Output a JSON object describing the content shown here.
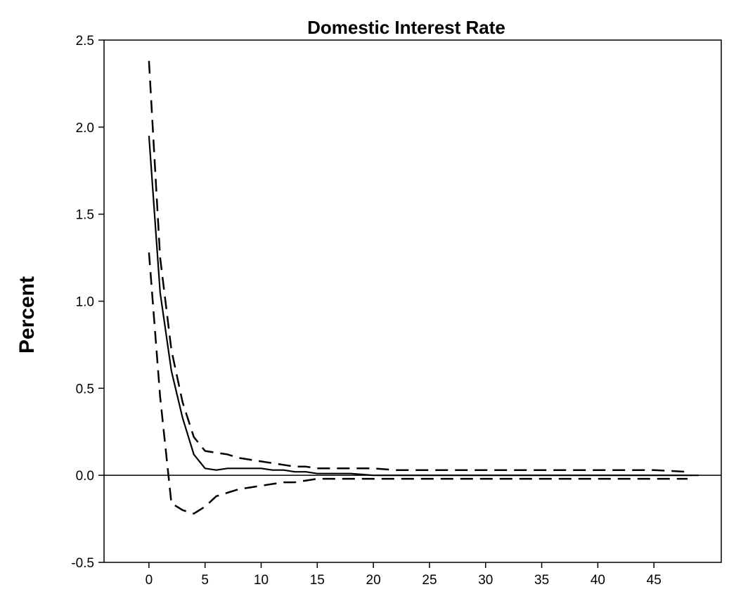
{
  "chart_data": {
    "type": "line",
    "title": "Domestic Interest Rate",
    "xlabel": "",
    "ylabel": "Percent",
    "xlim": [
      -4,
      51
    ],
    "ylim": [
      -0.5,
      2.5
    ],
    "x_ticks": [
      0,
      5,
      10,
      15,
      20,
      25,
      30,
      35,
      40,
      45
    ],
    "x_tick_labels": [
      "0",
      "5",
      "10",
      "15",
      "20",
      "25",
      "30",
      "35",
      "40",
      "45"
    ],
    "y_ticks": [
      -0.5,
      0.0,
      0.5,
      1.0,
      1.5,
      2.0,
      2.5
    ],
    "y_tick_labels": [
      "-0.5",
      "0.0",
      "0.5",
      "1.0",
      "1.5",
      "2.0",
      "2.5"
    ],
    "grid": false,
    "zero_line": true,
    "series": [
      {
        "style": "solid",
        "x": [
          0,
          1,
          2,
          3,
          4,
          5,
          6,
          7,
          8,
          9,
          10,
          11,
          12,
          13,
          14,
          15,
          16,
          18,
          20,
          22,
          25,
          30,
          35,
          40,
          45,
          49
        ],
        "y": [
          1.95,
          1.05,
          0.6,
          0.33,
          0.12,
          0.04,
          0.03,
          0.04,
          0.04,
          0.04,
          0.04,
          0.03,
          0.03,
          0.02,
          0.02,
          0.01,
          0.01,
          0.01,
          0.0,
          0.0,
          0.0,
          0.0,
          0.0,
          0.0,
          0.0,
          0.0
        ]
      },
      {
        "style": "dashed",
        "x": [
          0,
          1,
          2,
          3,
          4,
          5,
          6,
          7,
          8,
          9,
          10,
          11,
          12,
          13,
          14,
          15,
          16,
          18,
          20,
          22,
          25,
          30,
          35,
          40,
          45,
          48
        ],
        "y": [
          2.38,
          1.25,
          0.72,
          0.42,
          0.22,
          0.14,
          0.13,
          0.12,
          0.1,
          0.09,
          0.08,
          0.07,
          0.06,
          0.05,
          0.05,
          0.04,
          0.04,
          0.04,
          0.04,
          0.03,
          0.03,
          0.03,
          0.03,
          0.03,
          0.03,
          0.02
        ]
      },
      {
        "style": "dashed",
        "x": [
          0,
          1,
          2,
          3,
          4,
          5,
          6,
          7,
          8,
          9,
          10,
          11,
          12,
          13,
          14,
          15,
          16,
          18,
          20,
          22,
          25,
          30,
          35,
          40,
          45,
          48
        ],
        "y": [
          1.28,
          0.45,
          -0.16,
          -0.2,
          -0.22,
          -0.18,
          -0.12,
          -0.1,
          -0.08,
          -0.07,
          -0.06,
          -0.05,
          -0.04,
          -0.04,
          -0.03,
          -0.02,
          -0.02,
          -0.02,
          -0.02,
          -0.02,
          -0.02,
          -0.02,
          -0.02,
          -0.02,
          -0.02,
          -0.02
        ]
      }
    ]
  }
}
